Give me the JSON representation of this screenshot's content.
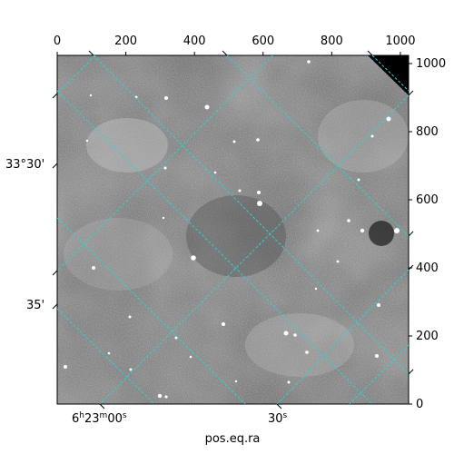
{
  "chart_data": {
    "type": "heatmap",
    "title": "",
    "xlabel": "pos.eq.ra",
    "ylabel": "",
    "colormap": "grayscale",
    "pixel_axes": {
      "x": {
        "lim": [
          0,
          1024
        ],
        "ticks": [
          0,
          200,
          400,
          600,
          800,
          1000
        ]
      },
      "y": {
        "lim": [
          0,
          1024
        ],
        "ticks": [
          0,
          200,
          400,
          600,
          800,
          1000
        ]
      }
    },
    "world_axes": {
      "ra": {
        "label": "pos.eq.ra",
        "ticks": [
          {
            "h": "6",
            "m": "23",
            "s": "00",
            "text": "6h23m00s"
          },
          {
            "s": "30",
            "text": "30s"
          }
        ]
      },
      "dec": {
        "ticks": [
          {
            "text": "33°30'"
          },
          {
            "text": "35'"
          }
        ]
      }
    },
    "grid": true,
    "grid_color": "#2bd4d4",
    "grid_style": "dashed"
  }
}
